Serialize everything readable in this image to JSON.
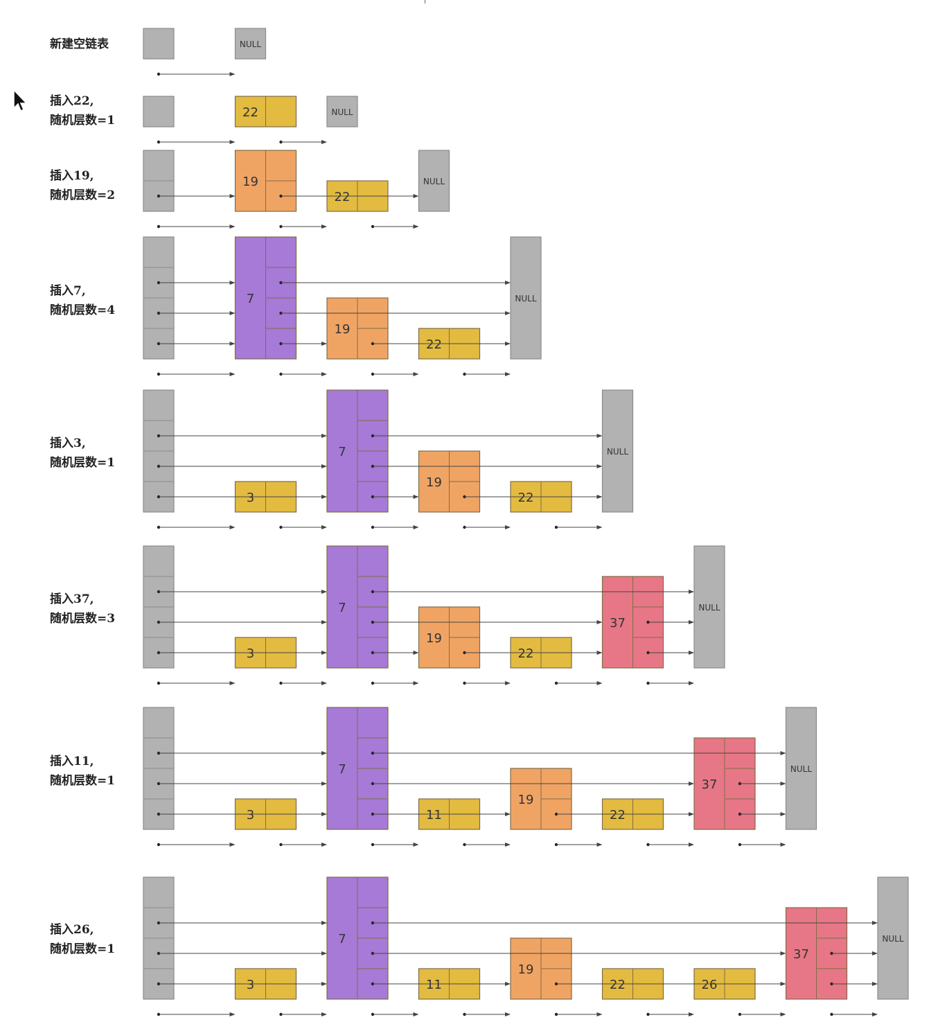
{
  "colors": {
    "head": "#b2b2b2",
    "null_node": "#b2b2b2",
    "level1": "#e3bb40",
    "level2": "#f0a464",
    "level3": "#e77786",
    "level4": "#a67ad6",
    "border": "#7f6c46",
    "arrow": "#444444"
  },
  "null_label": "NULL",
  "rows": [
    {
      "label": [
        "新建空链表"
      ],
      "levels": 1,
      "nodes": []
    },
    {
      "label": [
        "插入22,",
        "随机层数=1"
      ],
      "levels": 1,
      "nodes": [
        {
          "key": "22",
          "height": 1
        }
      ]
    },
    {
      "label": [
        "插入19,",
        "随机层数=2"
      ],
      "levels": 2,
      "nodes": [
        {
          "key": "19",
          "height": 2
        },
        {
          "key": "22",
          "height": 1
        }
      ]
    },
    {
      "label": [
        "插入7,",
        "随机层数=4"
      ],
      "levels": 4,
      "nodes": [
        {
          "key": "7",
          "height": 4
        },
        {
          "key": "19",
          "height": 2
        },
        {
          "key": "22",
          "height": 1
        }
      ]
    },
    {
      "label": [
        "插入3,",
        "随机层数=1"
      ],
      "levels": 4,
      "nodes": [
        {
          "key": "3",
          "height": 1
        },
        {
          "key": "7",
          "height": 4
        },
        {
          "key": "19",
          "height": 2
        },
        {
          "key": "22",
          "height": 1
        }
      ]
    },
    {
      "label": [
        "插入37,",
        "随机层数=3"
      ],
      "levels": 4,
      "nodes": [
        {
          "key": "3",
          "height": 1
        },
        {
          "key": "7",
          "height": 4
        },
        {
          "key": "19",
          "height": 2
        },
        {
          "key": "22",
          "height": 1
        },
        {
          "key": "37",
          "height": 3
        }
      ]
    },
    {
      "label": [
        "插入11,",
        "随机层数=1"
      ],
      "levels": 4,
      "nodes": [
        {
          "key": "3",
          "height": 1
        },
        {
          "key": "7",
          "height": 4
        },
        {
          "key": "11",
          "height": 1
        },
        {
          "key": "19",
          "height": 2
        },
        {
          "key": "22",
          "height": 1
        },
        {
          "key": "37",
          "height": 3
        }
      ]
    },
    {
      "label": [
        "插入26,",
        "随机层数=1"
      ],
      "levels": 4,
      "nodes": [
        {
          "key": "3",
          "height": 1
        },
        {
          "key": "7",
          "height": 4
        },
        {
          "key": "11",
          "height": 1
        },
        {
          "key": "19",
          "height": 2
        },
        {
          "key": "22",
          "height": 1
        },
        {
          "key": "26",
          "height": 1
        },
        {
          "key": "37",
          "height": 3
        }
      ]
    }
  ]
}
